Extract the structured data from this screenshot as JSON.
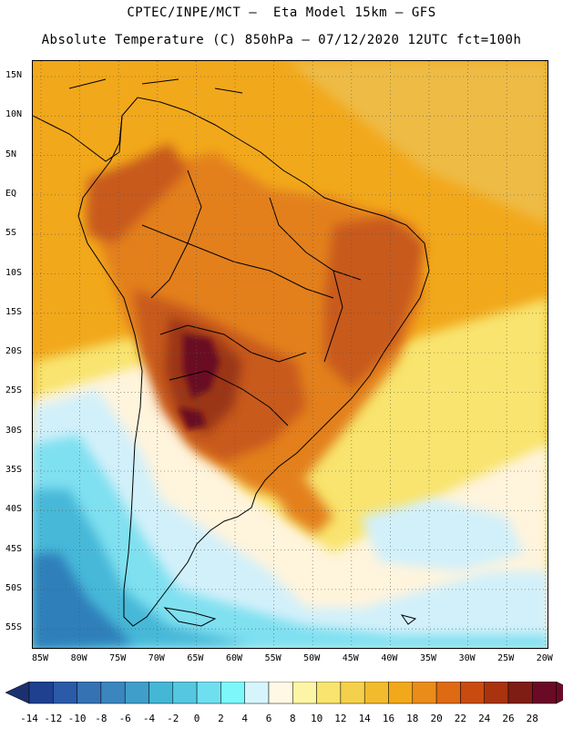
{
  "header": {
    "line1": "CPTEC/INPE/MCT –  Eta Model 15km – GFS",
    "line2": "Absolute Temperature (C) 850hPa – 07/12/2020 12UTC fct=100h"
  },
  "axes": {
    "lat_labels": [
      "15N",
      "10N",
      "5N",
      "EQ",
      "5S",
      "10S",
      "15S",
      "20S",
      "25S",
      "30S",
      "35S",
      "40S",
      "45S",
      "50S",
      "55S"
    ],
    "lon_labels": [
      "85W",
      "80W",
      "75W",
      "70W",
      "65W",
      "60W",
      "55W",
      "50W",
      "45W",
      "40W",
      "35W",
      "30W",
      "25W",
      "20W"
    ]
  },
  "colorbar": {
    "labels": [
      "-14",
      "-12",
      "-10",
      "-8",
      "-6",
      "-4",
      "-2",
      "0",
      "2",
      "4",
      "6",
      "8",
      "10",
      "12",
      "14",
      "16",
      "18",
      "20",
      "22",
      "24",
      "26",
      "28"
    ],
    "colors": [
      "#1f3f8f",
      "#2a5aa8",
      "#3572b4",
      "#3b86bf",
      "#3f9fca",
      "#44b6d6",
      "#53c8e0",
      "#6fdff0",
      "#7df7fa",
      "#d6f4fb",
      "#fff8e5",
      "#fdf5a6",
      "#f8e46e",
      "#f5d04c",
      "#f2bb2e",
      "#f2a81b",
      "#ea8c1a",
      "#de6a14",
      "#c94b10",
      "#a8330e",
      "#7e1d14",
      "#6b0a26"
    ]
  },
  "map": {
    "colors": {
      "background": "#f2a81b",
      "north_ocean": "#eebb44",
      "warm": "#e3801a",
      "hot": "#c85a1a",
      "very_hot": "#9a3416",
      "core": "#6b1020",
      "south_cool": "#fbe5a0",
      "pale": "#fff4dc",
      "light_blue": "#d2f0fa",
      "cyan": "#7fe0f0",
      "mid_blue": "#47b8d8",
      "deep_blue": "#2f7fba",
      "coast": "#000000"
    }
  }
}
